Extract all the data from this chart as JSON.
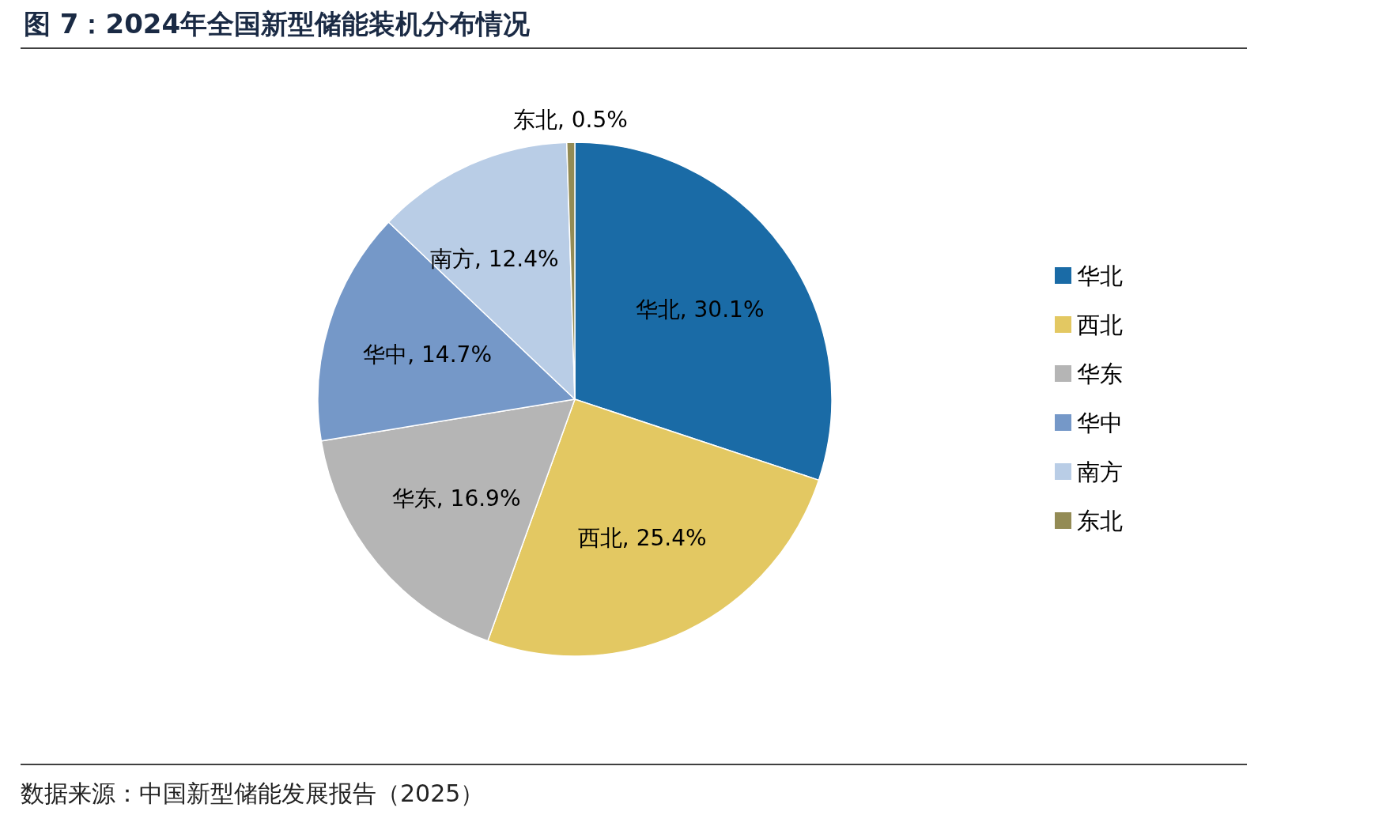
{
  "chart_data": {
    "type": "pie",
    "title": "图 7：2024年全国新型储能装机分布情况",
    "categories": [
      "华北",
      "西北",
      "华东",
      "华中",
      "南方",
      "东北"
    ],
    "values": [
      30.1,
      25.4,
      16.9,
      14.7,
      12.4,
      0.5
    ],
    "colors": [
      "#1a6ba6",
      "#e3c862",
      "#b5b5b5",
      "#7598c8",
      "#b9cde6",
      "#938b55"
    ],
    "value_labels": [
      "华北, 30.1%",
      "西北, 25.4%",
      "华东, 16.9%",
      "华中, 14.7%",
      "南方, 12.4%",
      "东北, 0.5%"
    ],
    "legend": "right",
    "annotations": [
      "数据来源：中国新型储能发展报告（2025）"
    ]
  }
}
